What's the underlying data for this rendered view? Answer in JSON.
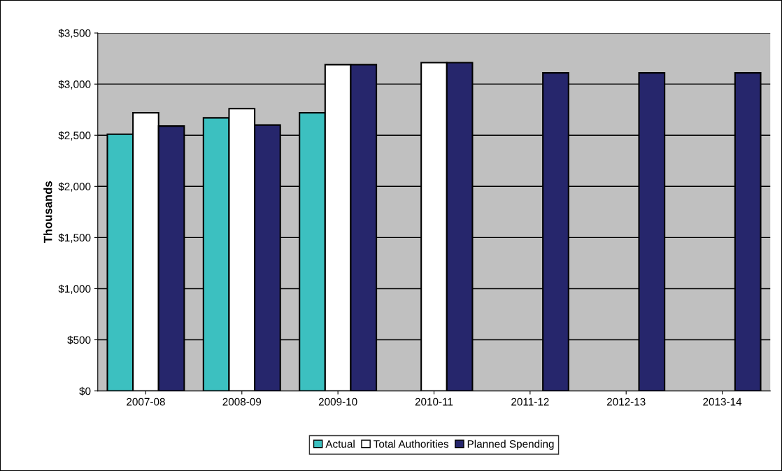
{
  "chart_data": {
    "type": "bar",
    "ylabel": "Thousands",
    "categories": [
      "2007-08",
      "2008-09",
      "2009-10",
      "2010-11",
      "2011-12",
      "2012-13",
      "2013-14"
    ],
    "series": [
      {
        "name": "Actual",
        "color": "#3cc0c0",
        "values": [
          2510,
          2670,
          2720,
          null,
          null,
          null,
          null
        ]
      },
      {
        "name": "Total Authorities",
        "color": "#ffffff",
        "values": [
          2720,
          2760,
          3190,
          3210,
          null,
          null,
          null
        ]
      },
      {
        "name": "Planned Spending",
        "color": "#26266c",
        "values": [
          2590,
          2600,
          3190,
          3210,
          3110,
          3110,
          3110
        ]
      }
    ],
    "ylim": [
      0,
      3500
    ],
    "yticks": [
      {
        "value": 0,
        "label": "$0"
      },
      {
        "value": 500,
        "label": "$500"
      },
      {
        "value": 1000,
        "label": "$1,000"
      },
      {
        "value": 1500,
        "label": "$1,500"
      },
      {
        "value": 2000,
        "label": "$2,000"
      },
      {
        "value": 2500,
        "label": "$2,500"
      },
      {
        "value": 3000,
        "label": "$3,000"
      },
      {
        "value": 3500,
        "label": "$3,500"
      }
    ],
    "grid": "y",
    "legend": "bottom"
  }
}
